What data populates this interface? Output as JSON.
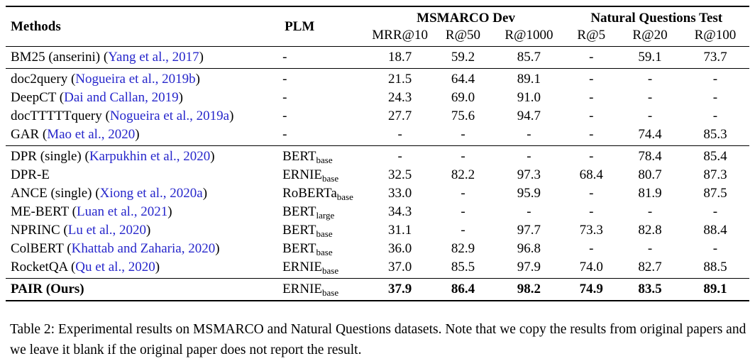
{
  "colors": {
    "citation": "#2626cb",
    "text": "#000000",
    "background": "#ffffff"
  },
  "table": {
    "columns": {
      "methods": "Methods",
      "plm": "PLM",
      "group1": "MSMARCO Dev",
      "group2": "Natural Questions Test",
      "metrics": [
        "MRR@10",
        "R@50",
        "R@1000",
        "R@5",
        "R@20",
        "R@100"
      ]
    },
    "groups": [
      {
        "bold": false,
        "rows": [
          {
            "method_prefix": "BM25 (anserini) (",
            "citation": "Yang et al., 2017",
            "method_suffix": ")",
            "plm": "-",
            "plm_sub": "",
            "values": [
              "18.7",
              "59.2",
              "85.7",
              "-",
              "59.1",
              "73.7"
            ]
          }
        ]
      },
      {
        "bold": false,
        "rows": [
          {
            "method_prefix": "doc2query (",
            "citation": "Nogueira et al., 2019b",
            "method_suffix": ")",
            "plm": "-",
            "plm_sub": "",
            "values": [
              "21.5",
              "64.4",
              "89.1",
              "-",
              "-",
              "-"
            ]
          },
          {
            "method_prefix": "DeepCT (",
            "citation": "Dai and Callan, 2019",
            "method_suffix": ")",
            "plm": "-",
            "plm_sub": "",
            "values": [
              "24.3",
              "69.0",
              "91.0",
              "-",
              "-",
              "-"
            ]
          },
          {
            "method_prefix": "docTTTTTquery (",
            "citation": "Nogueira et al., 2019a",
            "method_suffix": ")",
            "plm": "-",
            "plm_sub": "",
            "values": [
              "27.7",
              "75.6",
              "94.7",
              "-",
              "-",
              "-"
            ]
          },
          {
            "method_prefix": "GAR (",
            "citation": "Mao et al., 2020",
            "method_suffix": ")",
            "plm": "-",
            "plm_sub": "",
            "values": [
              "-",
              "-",
              "-",
              "-",
              "74.4",
              "85.3"
            ]
          }
        ]
      },
      {
        "bold": false,
        "rows": [
          {
            "method_prefix": "DPR (single) (",
            "citation": "Karpukhin et al., 2020",
            "method_suffix": ")",
            "plm": "BERT",
            "plm_sub": "base",
            "values": [
              "-",
              "-",
              "-",
              "-",
              "78.4",
              "85.4"
            ]
          },
          {
            "method_prefix": "DPR-E",
            "citation": "",
            "method_suffix": "",
            "plm": "ERNIE",
            "plm_sub": "base",
            "values": [
              "32.5",
              "82.2",
              "97.3",
              "68.4",
              "80.7",
              "87.3"
            ]
          },
          {
            "method_prefix": "ANCE (single) (",
            "citation": "Xiong et al., 2020a",
            "method_suffix": ")",
            "plm": "RoBERTa",
            "plm_sub": "base",
            "values": [
              "33.0",
              "-",
              "95.9",
              "-",
              "81.9",
              "87.5"
            ]
          },
          {
            "method_prefix": "ME-BERT (",
            "citation": "Luan et al., 2021",
            "method_suffix": ")",
            "plm": "BERT",
            "plm_sub": "large",
            "values": [
              "34.3",
              "-",
              "-",
              "-",
              "-",
              "-"
            ]
          },
          {
            "method_prefix": "NPRINC (",
            "citation": "Lu et al., 2020",
            "method_suffix": ")",
            "plm": "BERT",
            "plm_sub": "base",
            "values": [
              "31.1",
              "-",
              "97.7",
              "73.3",
              "82.8",
              "88.4"
            ]
          },
          {
            "method_prefix": "ColBERT (",
            "citation": "Khattab and Zaharia, 2020",
            "method_suffix": ")",
            "plm": "BERT",
            "plm_sub": "base",
            "values": [
              "36.0",
              "82.9",
              "96.8",
              "-",
              "-",
              "-"
            ]
          },
          {
            "method_prefix": "RocketQA (",
            "citation": "Qu et al., 2020",
            "method_suffix": ")",
            "plm": "ERNIE",
            "plm_sub": "base",
            "values": [
              "37.0",
              "85.5",
              "97.9",
              "74.0",
              "82.7",
              "88.5"
            ]
          }
        ]
      },
      {
        "bold": true,
        "rows": [
          {
            "method_prefix": "PAIR (Ours)",
            "citation": "",
            "method_suffix": "",
            "plm": "ERNIE",
            "plm_sub": "base",
            "values": [
              "37.9",
              "86.4",
              "98.2",
              "74.9",
              "83.5",
              "89.1"
            ]
          }
        ]
      }
    ]
  },
  "caption": {
    "text": "Table 2: Experimental results on MSMARCO and Natural Questions datasets. Note that we copy the results from original papers and we leave it blank if the original paper does not report the result."
  }
}
